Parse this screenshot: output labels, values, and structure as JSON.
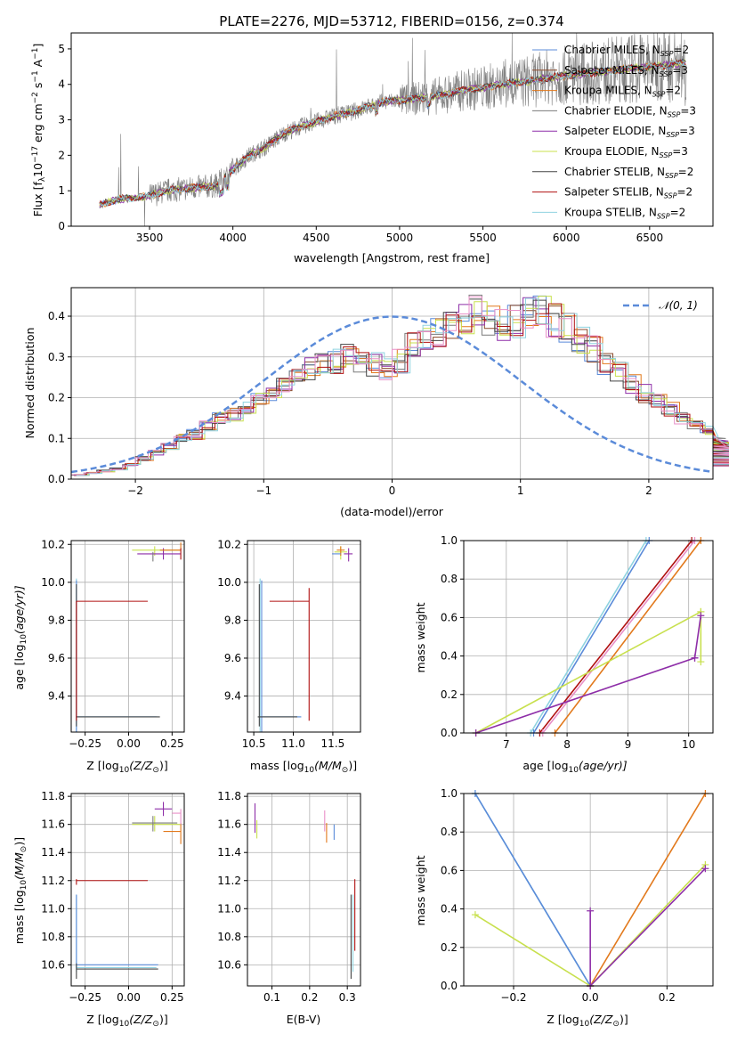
{
  "colors": {
    "Chabrier MILES": "#5b8bd9",
    "Salpeter MILES": "#8b4a2b",
    "Kroupa MILES": "#e2791c",
    "Chabrier ELODIE": "#7a7a7a",
    "Salpeter ELODIE": "#8e2ea8",
    "Kroupa ELODIE": "#c8e04e",
    "Chabrier STELIB": "#444444",
    "Salpeter STELIB": "#b01010",
    "Kroupa STELIB": "#8fd3e0",
    "gauss": "#5b8bd9",
    "extra_pink": "#e890c8"
  },
  "chart_data": [
    {
      "id": "spectrum",
      "type": "line",
      "title": "PLATE=2276, MJD=53712, FIBERID=0156, z=0.374",
      "xlabel": "wavelength [Angstrom, rest frame]",
      "ylabel_main": "Flux [f",
      "ylabel_sub": "λ",
      "ylabel_rest": "10",
      "ylabel_exp": "−17",
      "ylabel_tail": " erg cm",
      "ylabel_exp2": "−2",
      "ylabel_s": " s",
      "ylabel_exp3": "−1",
      "ylabel_A": " A",
      "ylabel_exp4": "−1",
      "ylabel_close": "]",
      "xlim": [
        3030,
        6880
      ],
      "ylim": [
        0,
        5.45
      ],
      "xticks": [
        "3500",
        "4000",
        "4500",
        "5000",
        "5500",
        "6000",
        "6500"
      ],
      "xtick_values": [
        3500,
        4000,
        4500,
        5000,
        5500,
        6000,
        6500
      ],
      "yticks": [
        "0",
        "1",
        "2",
        "3",
        "4",
        "5"
      ],
      "ytick_values": [
        0,
        1,
        2,
        3,
        4,
        5
      ],
      "legend_position": "top-right",
      "model_x": [
        3200,
        3300,
        3400,
        3500,
        3600,
        3700,
        3800,
        3900,
        4000,
        4100,
        4200,
        4300,
        4400,
        4500,
        4600,
        4700,
        4800,
        4900,
        5000,
        5100,
        5200,
        5300,
        5400,
        5500,
        5600,
        5700,
        5800,
        5900,
        6000,
        6100,
        6200,
        6300,
        6400,
        6500,
        6600,
        6700
      ],
      "model_y": [
        0.6,
        0.75,
        0.8,
        0.85,
        1.0,
        1.05,
        1.1,
        1.15,
        1.6,
        2.0,
        2.25,
        2.6,
        2.8,
        2.95,
        3.1,
        3.2,
        3.35,
        3.5,
        3.55,
        3.6,
        3.65,
        3.75,
        3.85,
        3.9,
        4.0,
        4.05,
        4.1,
        4.2,
        4.25,
        4.3,
        4.35,
        4.4,
        4.45,
        4.5,
        4.55,
        4.6
      ],
      "series": [
        {
          "name": "Chabrier MILES",
          "nssp": "2"
        },
        {
          "name": "Salpeter MILES",
          "nssp": "3"
        },
        {
          "name": "Kroupa MILES",
          "nssp": "2"
        },
        {
          "name": "Chabrier ELODIE",
          "nssp": "3"
        },
        {
          "name": "Salpeter ELODIE",
          "nssp": "3"
        },
        {
          "name": "Kroupa ELODIE",
          "nssp": "3"
        },
        {
          "name": "Chabrier STELIB",
          "nssp": "2"
        },
        {
          "name": "Salpeter STELIB",
          "nssp": "2"
        },
        {
          "name": "Kroupa STELIB",
          "nssp": "2"
        }
      ]
    },
    {
      "id": "residuals",
      "type": "step",
      "xlabel": "(data-model)/error",
      "ylabel": "Normed distribution",
      "xlim": [
        -2.5,
        2.5
      ],
      "ylim": [
        0,
        0.47
      ],
      "xticks": [
        "−2",
        "−1",
        "0",
        "1",
        "2"
      ],
      "xtick_values": [
        -2,
        -1,
        0,
        1,
        2
      ],
      "yticks": [
        "0.0",
        "0.1",
        "0.2",
        "0.3",
        "0.4"
      ],
      "ytick_values": [
        0,
        0.1,
        0.2,
        0.3,
        0.4
      ],
      "legend_label": "𝒩(0, 1)",
      "legend_position": "top-right",
      "bin_width": 0.1,
      "base_bins": [
        0.01,
        0.015,
        0.02,
        0.025,
        0.035,
        0.05,
        0.065,
        0.08,
        0.1,
        0.11,
        0.13,
        0.15,
        0.16,
        0.175,
        0.19,
        0.21,
        0.235,
        0.26,
        0.27,
        0.28,
        0.29,
        0.3,
        0.295,
        0.28,
        0.27,
        0.29,
        0.33,
        0.35,
        0.36,
        0.37,
        0.39,
        0.41,
        0.395,
        0.38,
        0.39,
        0.41,
        0.405,
        0.39,
        0.37,
        0.34,
        0.32,
        0.28,
        0.26,
        0.235,
        0.21,
        0.19,
        0.17,
        0.15,
        0.13,
        0.12,
        0.1,
        0.09,
        0.08,
        0.07,
        0.06,
        0.055,
        0.05,
        0.045,
        0.04,
        0.035
      ]
    },
    {
      "id": "age-vs-Z",
      "type": "errorbar",
      "xlabel_pre": "Z [log",
      "xlabel_sub": "10",
      "xlabel_post": "(Z/Z",
      "xlabel_sun": "⊙",
      "xlabel_close": ")]",
      "ylabel_pre": "age  [log",
      "ylabel_sub": "10",
      "ylabel_post": "(age/yr)]",
      "xlim": [
        -0.33,
        0.32
      ],
      "ylim": [
        9.21,
        10.22
      ],
      "xticks": [
        "−0.25",
        "0.00",
        "0.25"
      ],
      "xtick_values": [
        -0.25,
        0.0,
        0.25
      ],
      "yticks": [
        "9.4",
        "9.6",
        "9.8",
        "10.0",
        "10.2"
      ],
      "ytick_values": [
        9.4,
        9.6,
        9.8,
        10.0,
        10.2
      ]
    },
    {
      "id": "age-vs-mass",
      "type": "errorbar",
      "xlabel_pre": "mass [log",
      "xlabel_sub": "10",
      "xlabel_post": "(M/M",
      "xlabel_sun": "⊙",
      "xlabel_close": ")]",
      "xlim": [
        10.42,
        11.85
      ],
      "ylim": [
        9.21,
        10.22
      ],
      "xticks": [
        "10.5",
        "11.0",
        "11.5"
      ],
      "xtick_values": [
        10.5,
        11.0,
        11.5
      ],
      "yticks": [
        "9.4",
        "9.6",
        "9.8",
        "10.0",
        "10.2"
      ],
      "ytick_values": [
        9.4,
        9.6,
        9.8,
        10.0,
        10.2
      ]
    },
    {
      "id": "massweight-vs-age",
      "type": "line",
      "xlabel_pre": "age  [log",
      "xlabel_sub": "10",
      "xlabel_post": "(age/yr)]",
      "ylabel": "mass weight",
      "xlim": [
        6.3,
        10.4
      ],
      "ylim": [
        0,
        1
      ],
      "xticks": [
        "7",
        "8",
        "9",
        "10"
      ],
      "xtick_values": [
        7,
        8,
        9,
        10
      ],
      "yticks": [
        "0.0",
        "0.2",
        "0.4",
        "0.6",
        "0.8",
        "1.0"
      ],
      "ytick_values": [
        0,
        0.2,
        0.4,
        0.6,
        0.8,
        1.0
      ],
      "lines": [
        {
          "c": "Kroupa STELIB",
          "x": [
            7.4,
            9.3
          ],
          "y": [
            0,
            1
          ]
        },
        {
          "c": "Chabrier MILES",
          "x": [
            7.45,
            9.35
          ],
          "y": [
            0,
            1
          ]
        },
        {
          "c": "Salpeter STELIB",
          "x": [
            7.55,
            10.05
          ],
          "y": [
            0,
            1
          ]
        },
        {
          "c": "extra_pink",
          "x": [
            7.6,
            10.1
          ],
          "y": [
            0,
            1
          ]
        },
        {
          "c": "Kroupa MILES",
          "x": [
            7.8,
            10.2
          ],
          "y": [
            0,
            1
          ]
        },
        {
          "c": "Kroupa ELODIE",
          "x": [
            6.5,
            10.2
          ],
          "y": [
            0,
            0.63
          ]
        },
        {
          "c": "Kroupa ELODIE",
          "x": [
            10.2,
            10.2
          ],
          "y": [
            0.63,
            0.37
          ]
        },
        {
          "c": "Salpeter ELODIE",
          "x": [
            6.5,
            10.1
          ],
          "y": [
            0,
            0.39
          ]
        },
        {
          "c": "Salpeter ELODIE",
          "x": [
            10.1,
            10.2
          ],
          "y": [
            0.39,
            0.61
          ]
        }
      ]
    },
    {
      "id": "mass-vs-Z",
      "type": "errorbar",
      "xlabel_pre": "Z [log",
      "xlabel_sub": "10",
      "xlabel_post": "(Z/Z",
      "xlabel_sun": "⊙",
      "xlabel_close": ")]",
      "ylabel_pre": "mass [log",
      "ylabel_sub": "10",
      "ylabel_post": "(M/M",
      "ylabel_sun": "⊙",
      "ylabel_close": ")]",
      "xlim": [
        -0.33,
        0.32
      ],
      "ylim": [
        10.45,
        11.82
      ],
      "xticks": [
        "−0.25",
        "0.00",
        "0.25"
      ],
      "xtick_values": [
        -0.25,
        0.0,
        0.25
      ],
      "yticks": [
        "10.6",
        "10.8",
        "11.0",
        "11.2",
        "11.4",
        "11.6",
        "11.8"
      ],
      "ytick_values": [
        10.6,
        10.8,
        11.0,
        11.2,
        11.4,
        11.6,
        11.8
      ]
    },
    {
      "id": "mass-vs-EBV",
      "type": "errorbar",
      "xlabel": "E(B-V)",
      "xlim": [
        0.035,
        0.335
      ],
      "ylim": [
        10.45,
        11.82
      ],
      "xticks": [
        "0.1",
        "0.2",
        "0.3"
      ],
      "xtick_values": [
        0.1,
        0.2,
        0.3
      ],
      "yticks": [
        "10.6",
        "10.8",
        "11.0",
        "11.2",
        "11.4",
        "11.6",
        "11.8"
      ],
      "ytick_values": [
        10.6,
        10.8,
        11.0,
        11.2,
        11.4,
        11.6,
        11.8
      ]
    },
    {
      "id": "massweight-vs-Z",
      "type": "line",
      "xlabel_pre": "Z [log",
      "xlabel_sub": "10",
      "xlabel_post": "(Z/Z",
      "xlabel_sun": "⊙",
      "xlabel_close": ")]",
      "ylabel": "mass weight",
      "xlim": [
        -0.33,
        0.32
      ],
      "ylim": [
        0,
        1
      ],
      "xticks": [
        "−0.2",
        "0.0",
        "0.2"
      ],
      "xtick_values": [
        -0.2,
        0.0,
        0.2
      ],
      "yticks": [
        "0.0",
        "0.2",
        "0.4",
        "0.6",
        "0.8",
        "1.0"
      ],
      "ytick_values": [
        0,
        0.2,
        0.4,
        0.6,
        0.8,
        1.0
      ],
      "lines": [
        {
          "c": "Kroupa STELIB",
          "x": [
            -0.3,
            0.0
          ],
          "y": [
            1,
            0
          ]
        },
        {
          "c": "Chabrier MILES",
          "x": [
            -0.3,
            0.0
          ],
          "y": [
            1,
            0
          ]
        },
        {
          "c": "Kroupa MILES",
          "x": [
            0.0,
            0.3
          ],
          "y": [
            0,
            1
          ]
        },
        {
          "c": "Kroupa ELODIE",
          "x": [
            -0.3,
            0.0
          ],
          "y": [
            0.37,
            0
          ]
        },
        {
          "c": "Kroupa ELODIE",
          "x": [
            0.0,
            0.3
          ],
          "y": [
            0,
            0.63
          ]
        },
        {
          "c": "Salpeter ELODIE",
          "x": [
            0.0,
            0.3
          ],
          "y": [
            0,
            0.61
          ]
        },
        {
          "c": "Salpeter ELODIE",
          "x": [
            0.0,
            0.0
          ],
          "y": [
            0,
            0.39
          ]
        }
      ]
    }
  ]
}
